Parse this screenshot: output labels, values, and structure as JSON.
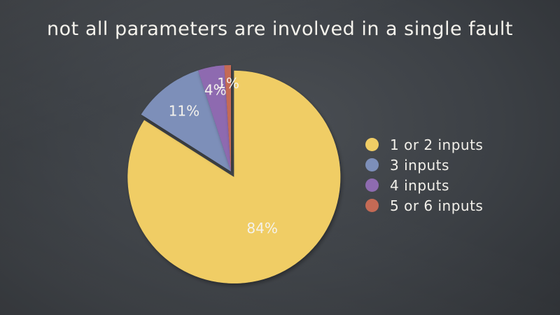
{
  "chart_data": {
    "type": "pie",
    "title": "not all parameters are involved in a single fault",
    "slices": [
      {
        "label": "1 or 2 inputs",
        "value": 84,
        "data_label": "84%",
        "color": "#f0cd65"
      },
      {
        "label": "3 inputs",
        "value": 11,
        "data_label": "11%",
        "color": "#7d8fb9"
      },
      {
        "label": "4 inputs",
        "value": 4,
        "data_label": "4%",
        "color": "#8e6bb0"
      },
      {
        "label": "5 or 6 inputs",
        "value": 1,
        "data_label": "1%",
        "color": "#c46a55"
      }
    ],
    "legend_position": "right",
    "exploded_slice": "1 or 2 inputs",
    "label_color": "#f4f2ec",
    "background_color": "#3c4045"
  }
}
